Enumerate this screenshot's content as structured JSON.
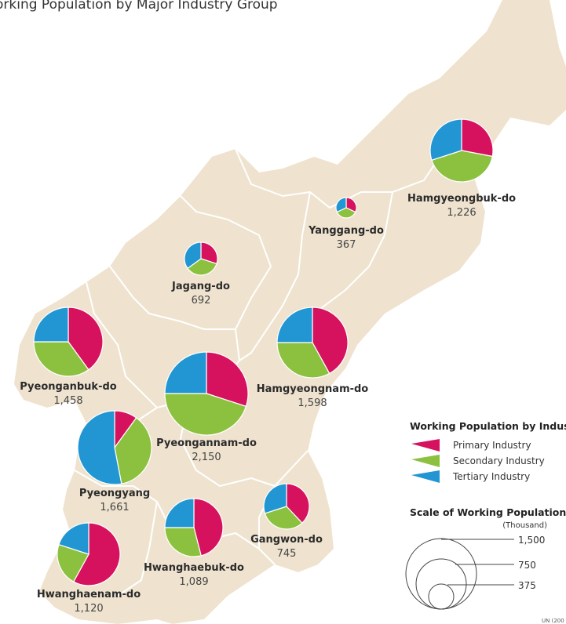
{
  "title": "orking Population by Major Industry Group",
  "colors": {
    "land": "#efe3cf",
    "border": "#ffffff",
    "primary": "#d6125f",
    "secondary": "#8cc13f",
    "tertiary": "#2196d3",
    "pie_stroke": "#ffffff"
  },
  "regions": [
    {
      "name": "Hamgyeongbuk-do",
      "value": "1,226",
      "shares": {
        "primary": 0.28,
        "secondary": 0.42,
        "tertiary": 0.3
      }
    },
    {
      "name": "Yanggang-do",
      "value": "367",
      "shares": {
        "primary": 0.32,
        "secondary": 0.36,
        "tertiary": 0.32
      }
    },
    {
      "name": "Jagang-do",
      "value": "692",
      "shares": {
        "primary": 0.3,
        "secondary": 0.35,
        "tertiary": 0.35
      }
    },
    {
      "name": "Pyeonganbuk-do",
      "value": "1,458",
      "shares": {
        "primary": 0.4,
        "secondary": 0.35,
        "tertiary": 0.25
      }
    },
    {
      "name": "Hamgyeongnam-do",
      "value": "1,598",
      "shares": {
        "primary": 0.42,
        "secondary": 0.33,
        "tertiary": 0.25
      }
    },
    {
      "name": "Pyeongannam-do",
      "value": "2,150",
      "shares": {
        "primary": 0.3,
        "secondary": 0.45,
        "tertiary": 0.25
      }
    },
    {
      "name": "Pyeongyang",
      "value": "1,661",
      "shares": {
        "primary": 0.1,
        "secondary": 0.37,
        "tertiary": 0.53
      }
    },
    {
      "name": "Gangwon-do",
      "value": "745",
      "shares": {
        "primary": 0.38,
        "secondary": 0.32,
        "tertiary": 0.3
      }
    },
    {
      "name": "Hwanghaebuk-do",
      "value": "1,089",
      "shares": {
        "primary": 0.46,
        "secondary": 0.29,
        "tertiary": 0.25
      }
    },
    {
      "name": "Hwanghaenam-do",
      "value": "1,120",
      "shares": {
        "primary": 0.58,
        "secondary": 0.22,
        "tertiary": 0.2
      }
    }
  ],
  "legend": {
    "industry_title": "Working Population by Industry",
    "items": [
      {
        "key": "primary",
        "label": "Primary Industry"
      },
      {
        "key": "secondary",
        "label": "Secondary Industry"
      },
      {
        "key": "tertiary",
        "label": "Tertiary Industry"
      }
    ],
    "scale_title": "Scale of Working Population",
    "scale_unit": "(Thousand)",
    "scale_values": [
      "1,500",
      "750",
      "375"
    ]
  },
  "source": "UN (200"
}
